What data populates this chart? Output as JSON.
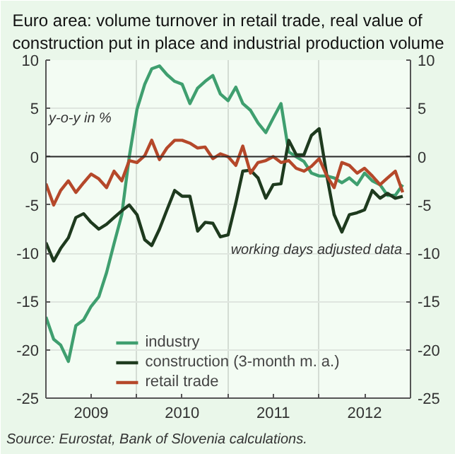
{
  "chart_data": {
    "type": "line",
    "title": "Euro area: volume turnover in retail trade, real value of construction put in place and industrial production volume",
    "ylabel": "y-o-y in %",
    "annotations": [
      "working days adjusted data",
      "Source: Eurostat, Bank of Slovenia calculations."
    ],
    "x": [
      "2009-01",
      "2009-02",
      "2009-03",
      "2009-04",
      "2009-05",
      "2009-06",
      "2009-07",
      "2009-08",
      "2009-09",
      "2009-10",
      "2009-11",
      "2009-12",
      "2010-01",
      "2010-02",
      "2010-03",
      "2010-04",
      "2010-05",
      "2010-06",
      "2010-07",
      "2010-08",
      "2010-09",
      "2010-10",
      "2010-11",
      "2010-12",
      "2011-01",
      "2011-02",
      "2011-03",
      "2011-04",
      "2011-05",
      "2011-06",
      "2011-07",
      "2011-08",
      "2011-09",
      "2011-10",
      "2011-11",
      "2011-12",
      "2012-01",
      "2012-02",
      "2012-03",
      "2012-04",
      "2012-05",
      "2012-06",
      "2012-07",
      "2012-08",
      "2012-09",
      "2012-10",
      "2012-11",
      "2012-12"
    ],
    "series": [
      {
        "name": "industry",
        "color": "#3f9f6f",
        "values": [
          -16.6,
          -18.9,
          -19.5,
          -21.2,
          -17.5,
          -16.9,
          -15.5,
          -14.5,
          -12,
          -9,
          -6,
          0,
          4.9,
          7.5,
          9.1,
          9.4,
          8.5,
          7.8,
          7.5,
          5.5,
          7.1,
          7.8,
          8.4,
          6.5,
          5.8,
          7.2,
          5.5,
          4.8,
          3.5,
          2.5,
          4,
          5.5,
          0.5,
          0,
          -0.5,
          -1.7,
          -2,
          -2,
          -2.2,
          -2.7,
          -2.2,
          -2.9,
          -1.7,
          -2.5,
          -2.9,
          -4,
          -4,
          -2.9
        ]
      },
      {
        "name": "construction (3-month m. a.)",
        "color": "#1e3a1e",
        "values": [
          -8.9,
          -10.8,
          -9.5,
          -8.4,
          -6.3,
          -5.9,
          -6.8,
          -7.5,
          -7,
          -6.3,
          -5.6,
          -5,
          -6,
          -8.6,
          -9.2,
          -7.5,
          -5.5,
          -3.5,
          -4.1,
          -4.1,
          -7.7,
          -6.8,
          -6.9,
          -8.3,
          -8.1,
          -4.8,
          -1.5,
          -1.4,
          -2.2,
          -4.3,
          -2.9,
          -2.8,
          1.7,
          0.2,
          0.2,
          2.2,
          2.9,
          -2,
          -6,
          -7.8,
          -6,
          -5.8,
          -5.5,
          -3.5,
          -4.3,
          -3.8,
          -4.3,
          -4.1
        ]
      },
      {
        "name": "retail trade",
        "color": "#b5482a",
        "values": [
          -2.8,
          -5,
          -3.5,
          -2.5,
          -3.7,
          -2.7,
          -1.8,
          -2.3,
          -3.2,
          -1.5,
          -2.5,
          -0.4,
          -0.6,
          0.1,
          1.7,
          -0.3,
          0.9,
          1.7,
          1.7,
          1.4,
          0.9,
          1,
          -0.2,
          0.3,
          0,
          -0.9,
          1.1,
          -1.7,
          -0.6,
          -0.4,
          0,
          -0.6,
          -0.4,
          -1.2,
          -1.5,
          -1,
          -0.2,
          -2,
          -3.2,
          -0.6,
          -0.9,
          -1.7,
          -1.2,
          -2,
          -2.9,
          -2.2,
          -1.5,
          -3.7
        ]
      }
    ],
    "xlim": [
      "2009-01",
      "2013-01"
    ],
    "xticks": [
      {
        "value": "2009-07",
        "label": "2009"
      },
      {
        "value": "2010-01",
        "label": null
      },
      {
        "value": "2010-07",
        "label": "2010"
      },
      {
        "value": "2011-01",
        "label": null
      },
      {
        "value": "2011-07",
        "label": "2011"
      },
      {
        "value": "2012-01",
        "label": null
      },
      {
        "value": "2012-07",
        "label": "2012"
      }
    ],
    "ylim": [
      -25,
      10
    ],
    "yticks": [
      -25,
      -20,
      -15,
      -10,
      -5,
      0,
      5,
      10
    ],
    "y2lim": [
      -25,
      10
    ],
    "y2ticks": [
      -25,
      -20,
      -15,
      -10,
      -5,
      0,
      5,
      10
    ],
    "ref_lines": [
      {
        "axis": "y",
        "value": 0,
        "color": "#2a2a2a"
      }
    ],
    "grid": true,
    "legend": "bottom",
    "line_style": "solid"
  }
}
